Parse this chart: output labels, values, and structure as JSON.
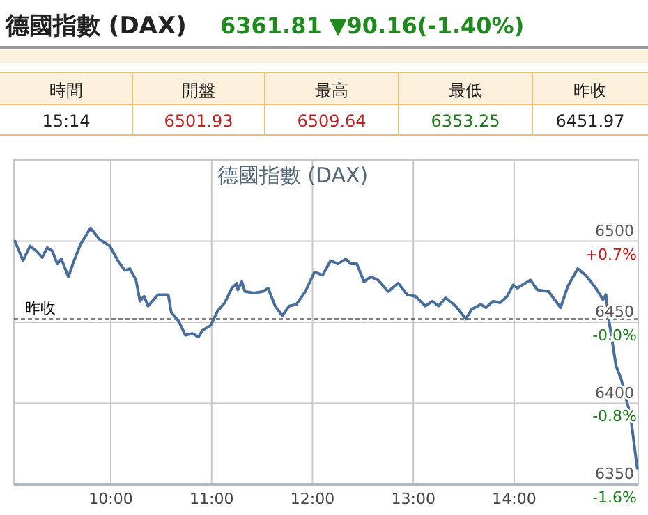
{
  "chart_data": {
    "type": "line",
    "title": "德國指數 (DAX)",
    "subtitle": "6361.81 ▼90.16(-1.40%)",
    "annotations": [
      "德國指數 (DAX)",
      "時間",
      "開盤",
      "最高",
      "最低",
      "昨收",
      "15:14",
      "6501.93",
      "6509.64",
      "6353.25",
      "6451.97"
    ],
    "series": [
      {
        "color": "#4a6e9c",
        "x": [
          9.05,
          9.13,
          9.2,
          9.26,
          9.32,
          9.37,
          9.42,
          9.47,
          9.51,
          9.58,
          9.63,
          9.7,
          9.8,
          9.89,
          9.99,
          10.08,
          10.14,
          10.19,
          10.25,
          10.29,
          10.33,
          10.37,
          10.47,
          10.57,
          10.6,
          10.67,
          10.74,
          10.81,
          10.87,
          10.91,
          10.99,
          11.06,
          11.13,
          11.2,
          11.25,
          11.26,
          11.3,
          11.33,
          11.42,
          11.51,
          11.56,
          11.63,
          11.7,
          11.77,
          11.84,
          11.93,
          12.02,
          12.1,
          12.18,
          12.25,
          12.33,
          12.38,
          12.44,
          12.51,
          12.58,
          12.65,
          12.75,
          12.85,
          12.94,
          13.02,
          13.12,
          13.19,
          13.25,
          13.32,
          13.42,
          13.52,
          13.58,
          13.67,
          13.72,
          13.79,
          13.86,
          13.93,
          13.99,
          14.03,
          14.16,
          14.23,
          14.34,
          14.46,
          14.53,
          14.63,
          14.71,
          14.81,
          14.88,
          14.91,
          14.94,
          15.01,
          15.06,
          15.13,
          15.15,
          15.22
        ],
        "values": [
          6500,
          6488,
          6497,
          6494,
          6490,
          6496,
          6494,
          6486,
          6489,
          6478,
          6487,
          6498,
          6508,
          6501,
          6497,
          6487,
          6482,
          6483,
          6476,
          6463,
          6466,
          6460,
          6467,
          6467,
          6456,
          6451,
          6442,
          6443,
          6441,
          6445,
          6448,
          6457,
          6462,
          6471,
          6474,
          6470,
          6475,
          6469,
          6468,
          6469,
          6471,
          6460,
          6454,
          6460,
          6461,
          6469,
          6481,
          6479,
          6488,
          6486,
          6489,
          6486,
          6486,
          6475,
          6478,
          6476,
          6469,
          6474,
          6467,
          6466,
          6460,
          6463,
          6460,
          6465,
          6460,
          6452,
          6458,
          6461,
          6459,
          6463,
          6462,
          6466,
          6473,
          6471,
          6476,
          6470,
          6469,
          6459,
          6472,
          6483,
          6479,
          6471,
          6464,
          6467,
          6451,
          6423,
          6415,
          6398,
          6394,
          6360
        ]
      }
    ],
    "xlim": [
      9.04,
      15.23
    ],
    "xticks": [
      {
        "value": 10,
        "label": "10:00"
      },
      {
        "value": 11,
        "label": "11:00"
      },
      {
        "value": 12,
        "label": "12:00"
      },
      {
        "value": 13,
        "label": "13:00"
      },
      {
        "value": 14,
        "label": "14:00"
      }
    ],
    "ylim": [
      6350,
      6550
    ],
    "yticks": [
      6350,
      6400,
      6450,
      6500
    ],
    "y2lim": [
      -1.58,
      1.52
    ],
    "y2ticks": [
      {
        "value": 0.74,
        "label": "+0.7%"
      },
      {
        "value": -0.03,
        "label": "-0.0%"
      },
      {
        "value": -0.8,
        "label": "-0.8%"
      },
      {
        "value": -1.58,
        "label": "-1.6%"
      }
    ],
    "ref_lines": [
      {
        "axis": "y",
        "value": 6451.97,
        "label": "昨收",
        "color": "#000000",
        "line_style": "dashed"
      }
    ],
    "grid": true
  }
}
